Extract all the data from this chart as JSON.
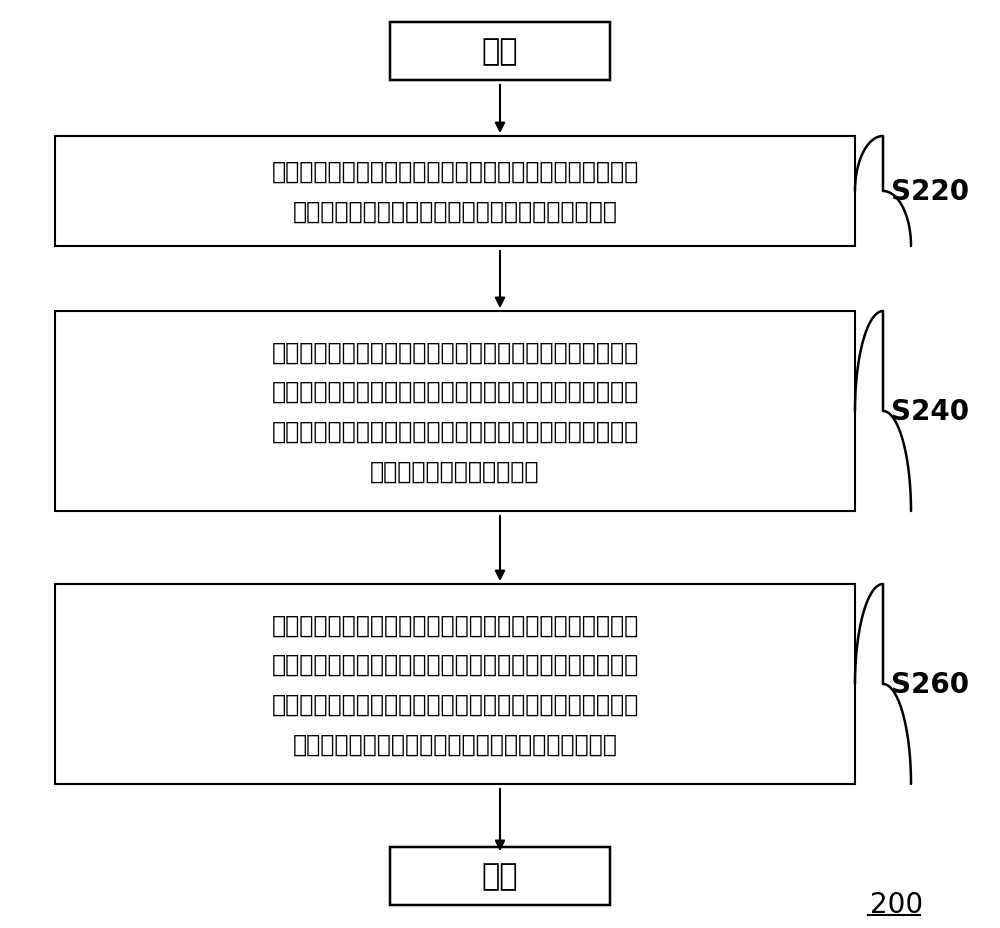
{
  "bg_color": "#ffffff",
  "box_color": "#ffffff",
  "box_edge_color": "#000000",
  "text_color": "#000000",
  "arrow_color": "#000000",
  "start_end_text": [
    "开始",
    "结束"
  ],
  "box_texts": [
    "获取用户输入的体重和身高信息，并根据计步閘值模型得到\n该体重和身高信息所对应的各项计步参数的第一閘值",
    "获取用户在移动终端中设定的运动模式，并分别统计用户在\n不同运动模式下运动时加速度传感器采集的步态波动数据，\n并从中统计出各项计步参数的第二閘值，其中，所述运动模\n式包括跑步模式和行走模式",
    "对于各项计步参数，分别计算其第一閘值与第二閘值的第一\n差值，若所有计步参数的该第一差值都小于对应的第一差值\n门限，则将对应运动模式下各计步参数的计步閘值设定为对\n应参数的所述第一閘值，反之则设定为所述第二閘值"
  ],
  "step_labels": [
    "S220",
    "S240",
    "S260"
  ],
  "label_200": "200",
  "font_size_cn": 17,
  "font_size_start_end": 22,
  "font_size_step": 20,
  "font_size_200": 20
}
